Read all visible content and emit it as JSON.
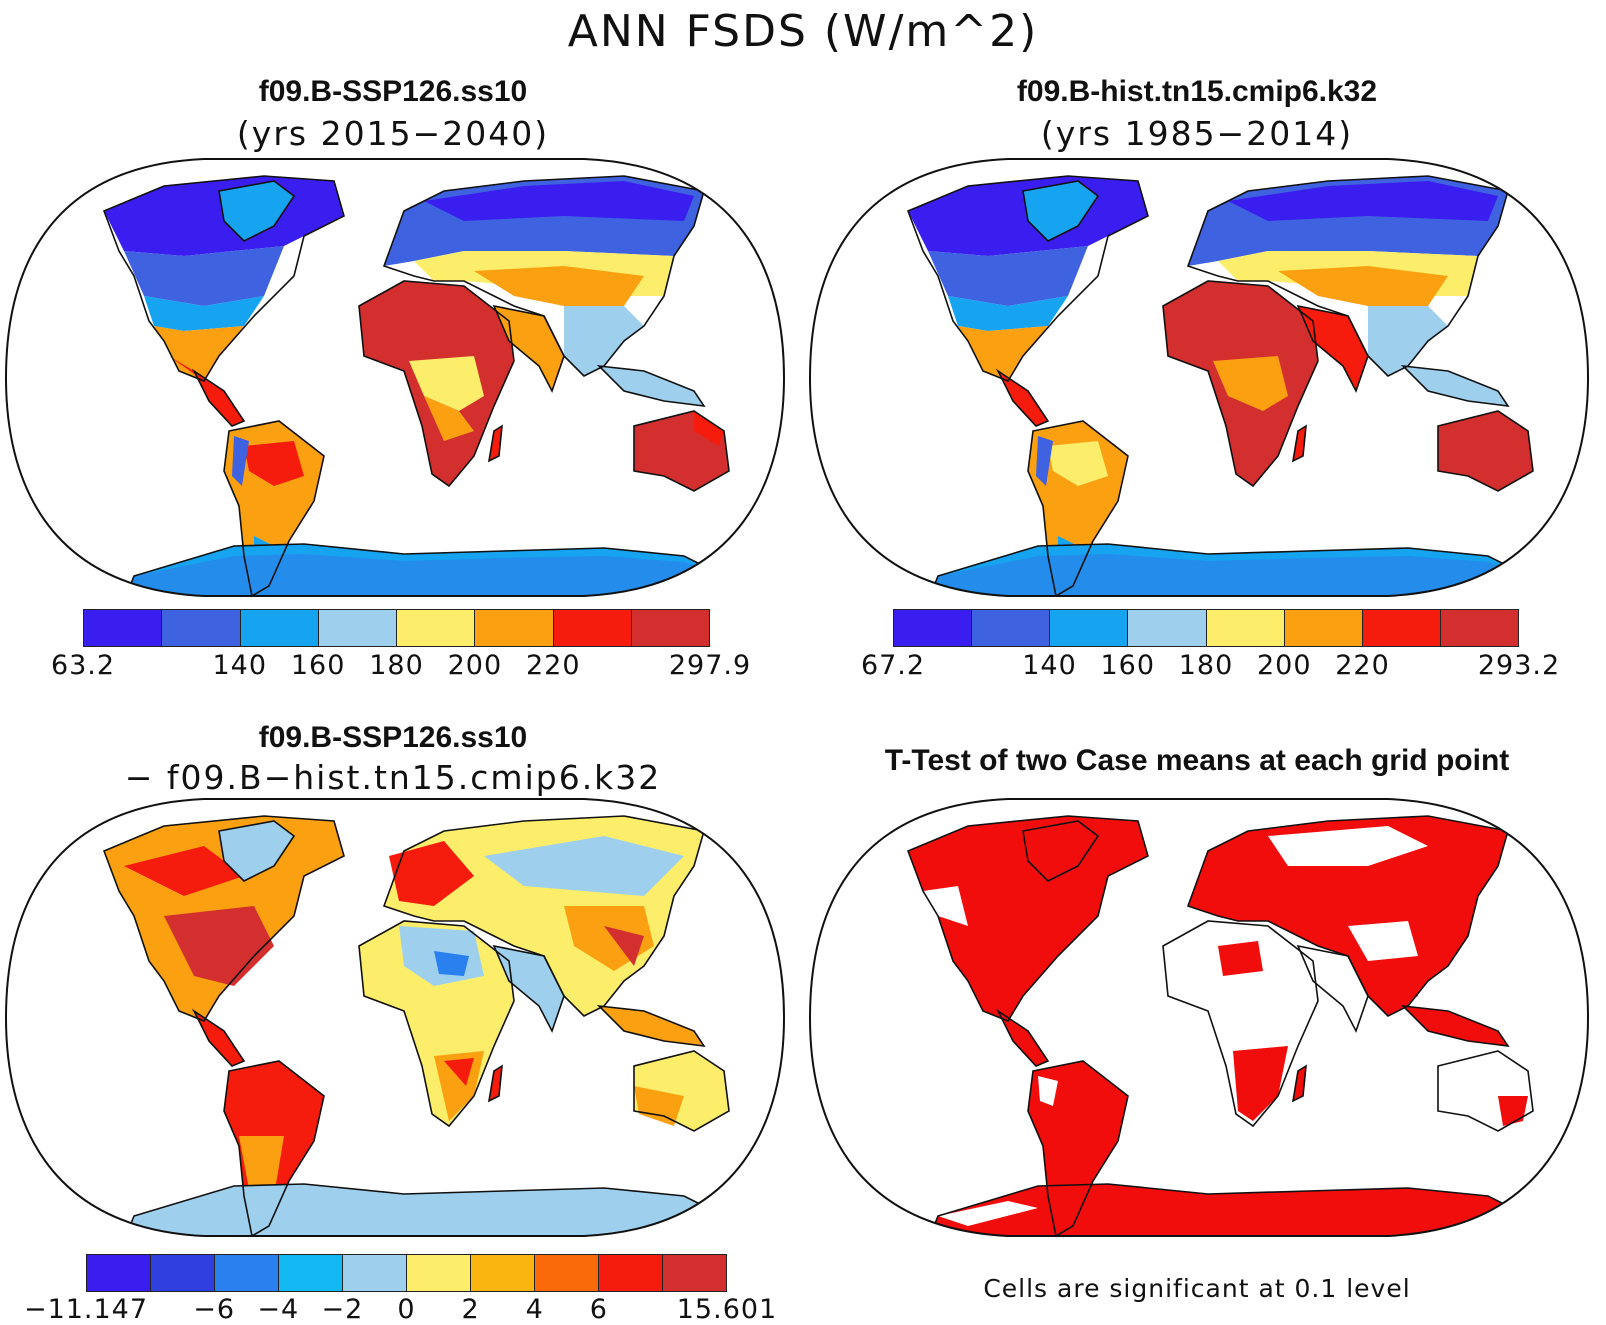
{
  "title": "ANN FSDS (W/m^2)",
  "panels": {
    "tl": {
      "title": "f09.B-SSP126.ss10",
      "subtitle": "(yrs 2015−2040)"
    },
    "tr": {
      "title": "f09.B-hist.tn15.cmip6.k32",
      "subtitle": "(yrs 1985−2014)"
    },
    "bl": {
      "title": "f09.B-SSP126.ss10",
      "subtitle": "− f09.B−hist.tn15.cmip6.k32"
    },
    "br": {
      "title": "T-Test of two Case means at each grid point",
      "note": "Cells are significant at 0.1 level"
    }
  },
  "colorbars": {
    "tl": {
      "colors": [
        "#3a1ef0",
        "#3f62e0",
        "#16a4f0",
        "#9ed0ee",
        "#fcee6a",
        "#fba010",
        "#f51b0d",
        "#d32f2f"
      ],
      "labels": [
        "63.2",
        "140",
        "160",
        "180",
        "200",
        "220",
        "297.9"
      ]
    },
    "tr": {
      "colors": [
        "#3a1ef0",
        "#3f62e0",
        "#16a4f0",
        "#9ed0ee",
        "#fcee6a",
        "#fba010",
        "#f51b0d",
        "#d32f2f"
      ],
      "labels": [
        "67.2",
        "140",
        "160",
        "180",
        "200",
        "220",
        "293.2"
      ]
    },
    "bl": {
      "colors": [
        "#3a1ef0",
        "#3040e0",
        "#2a80ee",
        "#12b8f2",
        "#9ed0ee",
        "#fcee6a",
        "#fbb511",
        "#fa6a0a",
        "#f51b0d",
        "#d32f2f"
      ],
      "labels": [
        "−11.147",
        "−6",
        "−4",
        "−2",
        "0",
        "2",
        "4",
        "6",
        "15.601"
      ]
    }
  },
  "colors": {
    "significant": "#f20d0d",
    "land_outline": "#111111"
  }
}
